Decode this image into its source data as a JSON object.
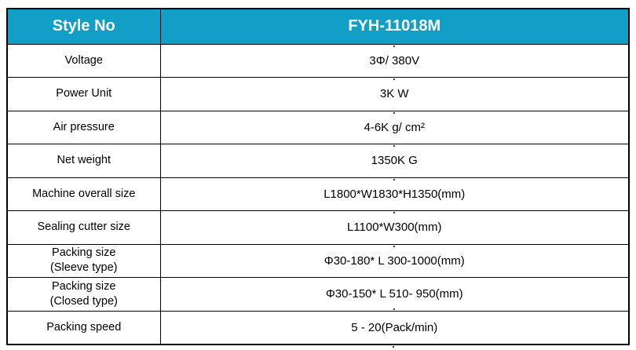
{
  "colors": {
    "header_bg": "#119FC7",
    "header_text": "#FFFFFF",
    "border": "#000000",
    "body_text": "#000000",
    "page_bg": "#FFFFFF"
  },
  "table": {
    "header": {
      "label": "Style No",
      "value": "FYH-11018M"
    },
    "rows": [
      {
        "label": "Voltage",
        "value": "3Φ/ 380V"
      },
      {
        "label": "Power Unit",
        "value": "3K W"
      },
      {
        "label": "Air pressure",
        "value": "4-6K g/ cm²"
      },
      {
        "label": "Net weight",
        "value": "1350K G"
      },
      {
        "label": "Machine overall size",
        "value": "L1800*W1830*H1350(mm)"
      },
      {
        "label": "Sealing cutter size",
        "value": "L1100*W300(mm)"
      },
      {
        "label": "Packing size\n(Sleeve type)",
        "value": "Φ30-180* L 300-1000(mm)"
      },
      {
        "label": "Packing size\n(Closed type)",
        "value": "Φ30-150* L 510- 950(mm)"
      },
      {
        "label": "Packing speed",
        "value": "5 - 20(Pack/min)"
      }
    ]
  }
}
